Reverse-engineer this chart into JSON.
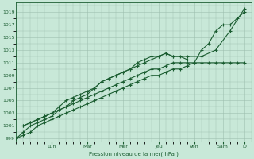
{
  "bg_color": "#c8e8d8",
  "grid_color": "#9dbfaf",
  "line_color": "#1a5c30",
  "title": "Pression niveau de la mer( hPa )",
  "ylabel_values": [
    999,
    1001,
    1003,
    1005,
    1007,
    1009,
    1011,
    1013,
    1015,
    1017,
    1019
  ],
  "x_day_labels": [
    "Lun",
    "Mar",
    "Mer",
    "Jeu",
    "Ven",
    "Sam",
    "D"
  ],
  "x_day_positions": [
    2.5,
    5.0,
    7.5,
    10.0,
    12.5,
    14.5,
    16.0
  ],
  "series1_x": [
    0,
    0.5,
    1.0,
    1.5,
    2.0,
    2.5,
    3.0,
    3.5,
    4.0,
    4.5,
    5.0,
    5.5,
    6.0,
    6.5,
    7.0,
    7.5,
    8.0,
    8.5,
    9.0,
    9.5,
    10.0,
    10.5,
    11.0,
    11.5,
    12.0,
    12.5,
    13.0,
    13.5,
    14.0,
    14.5,
    15.0,
    15.5,
    16.0
  ],
  "series1_y": [
    999,
    999.5,
    1000,
    1001,
    1001.5,
    1002,
    1002.5,
    1003,
    1003.5,
    1004,
    1004.5,
    1005,
    1005.5,
    1006,
    1006.5,
    1007,
    1007.5,
    1008,
    1008.5,
    1009,
    1009,
    1009.5,
    1010,
    1010,
    1010.5,
    1011,
    1011,
    1011,
    1011,
    1011,
    1011,
    1011,
    1011
  ],
  "series2_x": [
    0,
    0.5,
    1.0,
    1.5,
    2.0,
    2.5,
    3.0,
    3.5,
    4.0,
    4.5,
    5.0,
    5.5,
    6.0,
    6.5,
    7.0,
    7.5,
    8.0,
    8.5,
    9.0,
    9.5,
    10.0,
    10.5,
    11.0,
    12.0,
    13.0,
    14.0,
    15.0,
    16.0
  ],
  "series2_y": [
    999,
    1000,
    1001,
    1001.5,
    1002,
    1002.5,
    1003.5,
    1004,
    1005,
    1005.5,
    1006,
    1007,
    1008,
    1008.5,
    1009,
    1009.5,
    1010,
    1011,
    1011.5,
    1012,
    1012,
    1012.5,
    1012,
    1012,
    1012,
    1013,
    1016,
    1019.5
  ],
  "series3_x": [
    0.5,
    1.0,
    1.5,
    2.0,
    2.5,
    3.0,
    3.5,
    4.0,
    4.5,
    5.0,
    5.5,
    6.0,
    6.5,
    7.0,
    7.5,
    8.0,
    8.5,
    9.0,
    9.5,
    10.0,
    10.5,
    11.0,
    11.5,
    12.0
  ],
  "series3_y": [
    1001,
    1001.5,
    1002,
    1002.5,
    1003,
    1004,
    1005,
    1005.5,
    1006,
    1006.5,
    1007,
    1008,
    1008.5,
    1009,
    1009.5,
    1010,
    1010.5,
    1011,
    1011.5,
    1012,
    1012.5,
    1012,
    1012,
    1011.5
  ],
  "series4_x": [
    0.5,
    1.0,
    1.5,
    2.0,
    2.5,
    3.0,
    3.5,
    4.0,
    4.5,
    5.0,
    5.5,
    6.0,
    6.5,
    7.0,
    7.5,
    8.0,
    8.5,
    9.0,
    9.5,
    10.0,
    10.5,
    11.0,
    11.5,
    12.0,
    12.5,
    13.0,
    13.5,
    14.0,
    14.5,
    15.0,
    15.5,
    16.0
  ],
  "series4_y": [
    1001,
    1001.5,
    1002,
    1002.5,
    1003,
    1003.5,
    1004,
    1004.5,
    1005,
    1005.5,
    1006,
    1006.5,
    1007,
    1007.5,
    1008,
    1008.5,
    1009,
    1009.5,
    1010,
    1010,
    1010.5,
    1011,
    1011,
    1011,
    1011,
    1013,
    1014,
    1016,
    1017,
    1017,
    1018,
    1019
  ],
  "ylim": [
    998.5,
    1020.5
  ],
  "xlim": [
    0,
    16.5
  ],
  "figsize": [
    3.2,
    2.0
  ],
  "dpi": 100
}
